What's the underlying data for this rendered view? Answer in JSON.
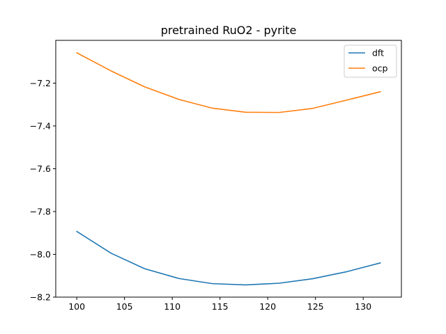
{
  "chart_data": {
    "type": "line",
    "title": "pretrained RuO2 - pyrite",
    "xlabel": "",
    "ylabel": "",
    "xlim": [
      97.8,
      134.0
    ],
    "ylim": [
      -8.2,
      -7.0
    ],
    "xticks": [
      100,
      105,
      110,
      115,
      120,
      125,
      130
    ],
    "yticks": [
      -8.2,
      -8.0,
      -7.8,
      -7.6,
      -7.4,
      -7.2
    ],
    "grid": false,
    "legend_position": "top-right",
    "x": [
      100.0,
      103.6,
      107.1,
      110.7,
      114.2,
      117.7,
      121.2,
      124.7,
      128.2,
      131.8
    ],
    "series": [
      {
        "name": "dft",
        "color": "#1f77b4",
        "values": [
          -7.893,
          -7.995,
          -8.067,
          -8.113,
          -8.137,
          -8.143,
          -8.135,
          -8.114,
          -8.082,
          -8.04
        ]
      },
      {
        "name": "ocp",
        "color": "#ff7f0e",
        "values": [
          -7.058,
          -7.143,
          -7.217,
          -7.276,
          -7.317,
          -7.336,
          -7.337,
          -7.318,
          -7.28,
          -7.24
        ]
      }
    ]
  }
}
